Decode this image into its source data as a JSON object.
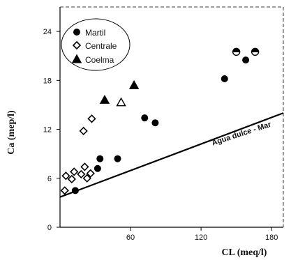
{
  "chart_data": {
    "type": "scatter",
    "xlabel": "CL (meq/l)",
    "ylabel": "Ca (mep/l)",
    "xlim": [
      0,
      190
    ],
    "ylim": [
      0,
      27
    ],
    "x_ticks": [
      60,
      120,
      180
    ],
    "y_ticks": [
      0,
      6,
      12,
      18,
      24
    ],
    "grid": false,
    "legend_position": "top-left",
    "series": [
      {
        "name": "Martil",
        "marker": "filled-circle",
        "points": [
          [
            13,
            4.5
          ],
          [
            32,
            7.2
          ],
          [
            34,
            8.4
          ],
          [
            49,
            8.4
          ],
          [
            72,
            13.4
          ],
          [
            81,
            12.8
          ],
          [
            140,
            18.2
          ],
          [
            158,
            20.5
          ]
        ]
      },
      {
        "name": "Martil",
        "marker": "half-filled-circle",
        "points": [
          [
            150,
            21.5
          ],
          [
            166,
            21.5
          ]
        ]
      },
      {
        "name": "Centrale",
        "marker": "open-diamond",
        "points": [
          [
            4,
            4.5
          ],
          [
            5,
            6.3
          ],
          [
            10,
            5.9
          ],
          [
            12,
            6.8
          ],
          [
            18,
            6.5
          ],
          [
            21,
            7.4
          ],
          [
            23,
            6.0
          ],
          [
            26,
            6.6
          ],
          [
            20,
            11.8
          ],
          [
            27,
            13.3
          ]
        ]
      },
      {
        "name": "Coelma",
        "marker": "filled-triangle",
        "points": [
          [
            38,
            15.6
          ],
          [
            63,
            17.4
          ]
        ]
      },
      {
        "name": "Coelma",
        "marker": "open-triangle",
        "points": [
          [
            52,
            15.3
          ]
        ]
      }
    ],
    "lines": [
      {
        "label": "Agua dulce - Mar",
        "x": [
          0,
          190
        ],
        "y": [
          3.7,
          14.0
        ]
      }
    ],
    "legend": [
      {
        "label": "Martil",
        "marker": "filled-circle"
      },
      {
        "label": "Centrale",
        "marker": "open-diamond"
      },
      {
        "label": "Coelma",
        "marker": "filled-triangle"
      }
    ]
  }
}
